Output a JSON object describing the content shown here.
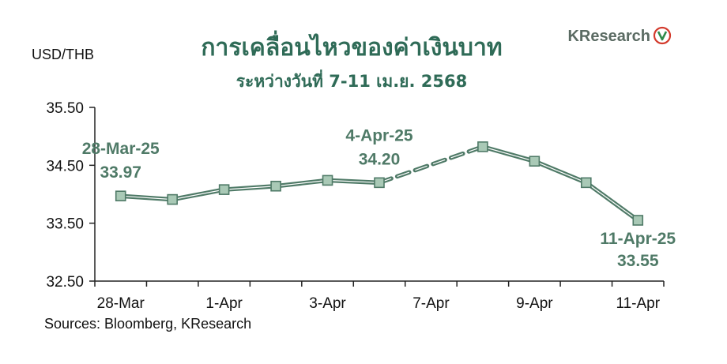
{
  "chart_data": {
    "type": "line",
    "title": "การเคลื่อนไหวของค่าเงินบาท",
    "subtitle": "ระหว่างวันที่ 7-11 เม.ย. 2568",
    "ylabel": "USD/THB",
    "source": "Sources: Bloomberg, KResearch",
    "brand": "KResearch",
    "ylim": [
      32.5,
      35.5
    ],
    "yticks": [
      "35.50",
      "34.50",
      "33.50",
      "32.50"
    ],
    "ytick_values": [
      35.5,
      34.5,
      33.5,
      32.5
    ],
    "xtick_labels": [
      "28-Mar",
      "1-Apr",
      "3-Apr",
      "7-Apr",
      "9-Apr",
      "11-Apr"
    ],
    "x": [
      "28-Mar",
      "31-Mar",
      "1-Apr",
      "2-Apr",
      "3-Apr",
      "4-Apr",
      "7-Apr",
      "8-Apr",
      "9-Apr",
      "10-Apr",
      "11-Apr"
    ],
    "values": [
      33.97,
      33.91,
      34.08,
      34.14,
      34.24,
      34.2,
      null,
      34.82,
      34.57,
      34.2,
      33.55
    ],
    "gap_dashed": true,
    "annotations": [
      {
        "date": "28-Mar-25",
        "value": "33.97",
        "at": "28-Mar"
      },
      {
        "date": "4-Apr-25",
        "value": "34.20",
        "at": "4-Apr"
      },
      {
        "date": "11-Apr-25",
        "value": "33.55",
        "at": "11-Apr"
      }
    ],
    "colors": {
      "line": "#4f7a67",
      "marker_fill": "#a9c9b6",
      "title": "#2f6b57",
      "annotation": "#4f7a67",
      "logo_red": "#d33a2c",
      "logo_green": "#2f8a4a"
    },
    "grid": false
  }
}
